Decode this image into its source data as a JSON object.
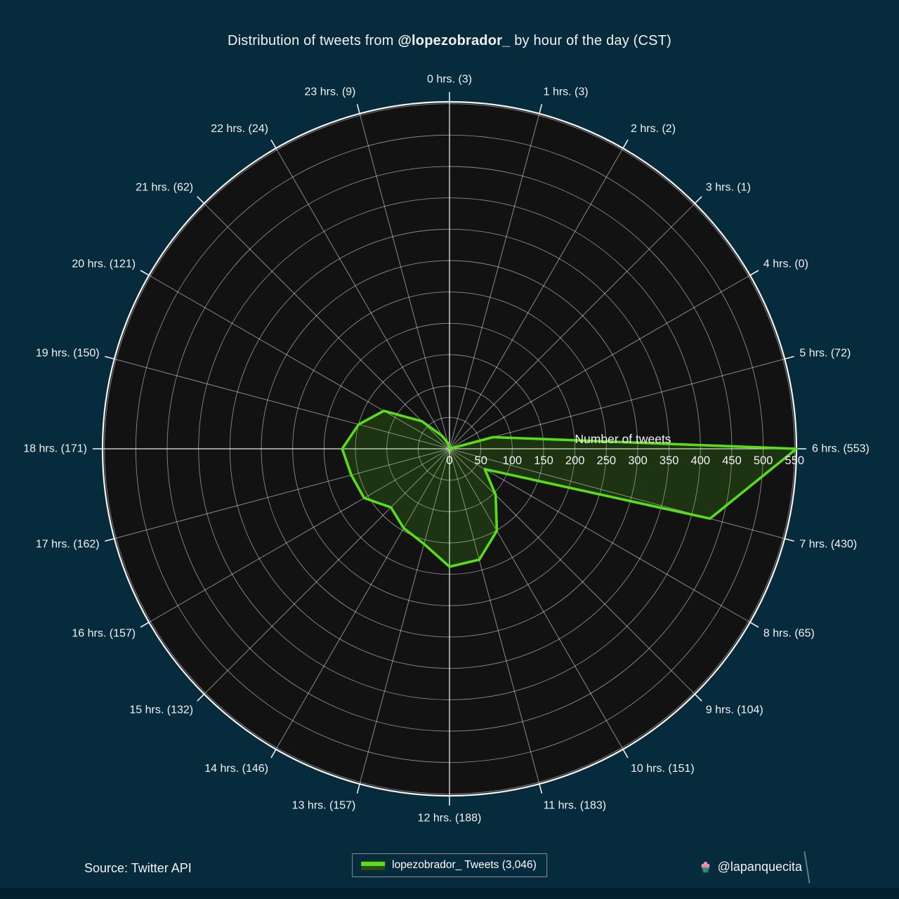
{
  "title": {
    "prefix": "Distribution of tweets from ",
    "handle": "@lopezobrador_",
    "suffix": " by hour of the day (CST)"
  },
  "footer": {
    "source": "Source: Twitter API",
    "legend_label": "lopezobrador_ Tweets (3,046)",
    "credit": "@lapanquecita",
    "credit_icon": "cupcake-icon"
  },
  "chart_data": {
    "type": "line",
    "projection": "polar",
    "title": "Distribution of tweets from @lopezobrador_ by hour of the day (CST)",
    "axis_label": "Number of tweets",
    "direction": "clockwise",
    "zero_position": "top",
    "grid": true,
    "rmax": 553,
    "total_tweets": 3046,
    "hours": [
      0,
      1,
      2,
      3,
      4,
      5,
      6,
      7,
      8,
      9,
      10,
      11,
      12,
      13,
      14,
      15,
      16,
      17,
      18,
      19,
      20,
      21,
      22,
      23
    ],
    "values": [
      3,
      3,
      2,
      1,
      0,
      72,
      553,
      430,
      65,
      104,
      151,
      183,
      188,
      157,
      146,
      132,
      157,
      162,
      171,
      150,
      121,
      62,
      24,
      9
    ],
    "hour_labels": [
      "0 hrs. (3)",
      "1 hrs. (3)",
      "2 hrs. (2)",
      "3 hrs. (1)",
      "4 hrs. (0)",
      "5 hrs. (72)",
      "6 hrs. (553)",
      "7 hrs. (430)",
      "8 hrs. (65)",
      "9 hrs. (104)",
      "10 hrs. (151)",
      "11 hrs. (183)",
      "12 hrs. (188)",
      "13 hrs. (157)",
      "14 hrs. (146)",
      "15 hrs. (132)",
      "16 hrs. (157)",
      "17 hrs. (162)",
      "18 hrs. (171)",
      "19 hrs. (150)",
      "20 hrs. (121)",
      "21 hrs. (62)",
      "22 hrs. (24)",
      "23 hrs. (9)"
    ],
    "radial_ticks": [
      0,
      50,
      100,
      150,
      200,
      250,
      300,
      350,
      400,
      450,
      500,
      550
    ],
    "radial_tick_labels": [
      "0",
      "50",
      "100",
      "150",
      "200",
      "250",
      "300",
      "350",
      "400",
      "450",
      "500",
      "550"
    ],
    "colors": {
      "line": "#58dd17",
      "fill": "rgba(88,221,23,0.17)",
      "background": "#062b3d",
      "plot_background": "#121212",
      "grid": "rgba(255,255,255,0.5)",
      "grid_cardinal": "rgba(255,255,255,0.9)",
      "outer_ring": "#f5f5f5",
      "text": "#f2f2f2"
    }
  }
}
